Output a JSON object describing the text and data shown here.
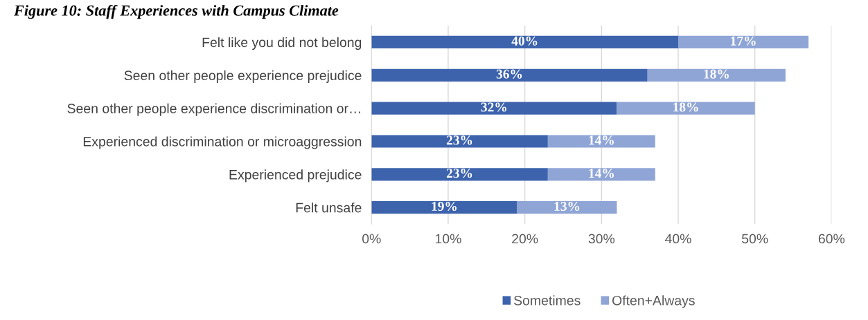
{
  "chart_data": {
    "type": "bar",
    "orientation": "horizontal",
    "stacked": true,
    "title": "Figure 10: Staff Experiences with Campus Climate",
    "categories": [
      "Felt like you did not belong",
      "Seen other people experience prejudice",
      "Seen other people experience discrimination or…",
      "Experienced discrimination or microaggression",
      "Experienced prejudice",
      "Felt unsafe"
    ],
    "series": [
      {
        "name": "Sometimes",
        "color": "#3d63ad",
        "values": [
          40,
          36,
          32,
          23,
          23,
          19
        ],
        "value_labels": [
          "40%",
          "36%",
          "32%",
          "23%",
          "23%",
          "19%"
        ]
      },
      {
        "name": "Often+Always",
        "color": "#8fa5d6",
        "values": [
          17,
          18,
          18,
          14,
          14,
          13
        ],
        "value_labels": [
          "17%",
          "18%",
          "18%",
          "14%",
          "14%",
          "13%"
        ]
      }
    ],
    "xlim": [
      0,
      60
    ],
    "xticks": [
      {
        "value": 0,
        "label": "0%"
      },
      {
        "value": 10,
        "label": "10%"
      },
      {
        "value": 20,
        "label": "20%"
      },
      {
        "value": 30,
        "label": "30%"
      },
      {
        "value": 40,
        "label": "40%"
      },
      {
        "value": 50,
        "label": "50%"
      },
      {
        "value": 60,
        "label": "60%"
      }
    ],
    "grid": "x",
    "legend": "bottom"
  }
}
